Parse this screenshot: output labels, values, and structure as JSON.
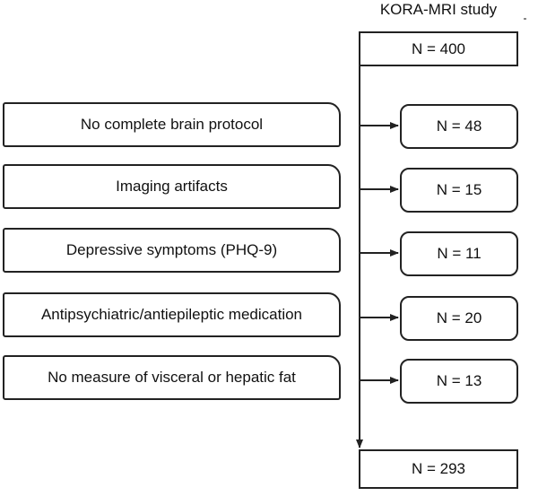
{
  "study_title": "KORA-MRI study",
  "start": {
    "label": "N = 400"
  },
  "exclusions": [
    {
      "reason": "No complete brain protocol",
      "count": "N = 48"
    },
    {
      "reason": "Imaging artifacts",
      "count": "N = 15"
    },
    {
      "reason": "Depressive symptoms (PHQ-9)",
      "count": "N = 11"
    },
    {
      "reason": "Antipsychiatric/antiepileptic medication",
      "count": "N = 20"
    },
    {
      "reason": "No measure of visceral or hepatic fat",
      "count": "N = 13"
    }
  ],
  "final": {
    "label": "N = 293"
  }
}
